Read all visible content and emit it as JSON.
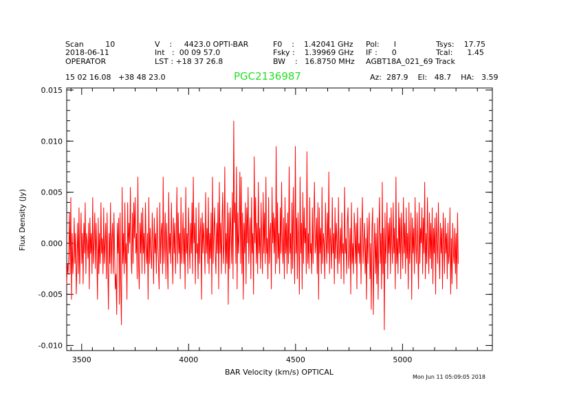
{
  "header": {
    "row1": [
      {
        "name": "header-scan",
        "text": "Scan         10"
      },
      {
        "name": "header-velocity",
        "text": "V    :     4423.0 OPTI-BAR"
      },
      {
        "name": "header-f0",
        "text": "F0    :    1.42041 GHz"
      },
      {
        "name": "header-pol",
        "text": "Pol:      I"
      },
      {
        "name": "header-tsys",
        "text": "Tsys:    17.75"
      }
    ],
    "row2": [
      {
        "name": "header-date",
        "text": "2018-06-11"
      },
      {
        "name": "header-int",
        "text": "Int   :  00 09 57.0"
      },
      {
        "name": "header-fsky",
        "text": "Fsky :    1.39969 GHz"
      },
      {
        "name": "header-if",
        "text": "IF :      0"
      },
      {
        "name": "header-tcal",
        "text": "Tcal:      1.45"
      }
    ],
    "row3": [
      {
        "name": "header-observer",
        "text": "OPERATOR"
      },
      {
        "name": "header-lst",
        "text": "LST : +18 37 26.8"
      },
      {
        "name": "header-bw",
        "text": "BW    :   16.8750 MHz"
      },
      {
        "name": "header-project",
        "text": "AGBT18A_021_69 Track"
      }
    ],
    "coords": "15 02 16.08   +38 48 23.0",
    "source": "PGC2136987",
    "azelha": "Az:  287.9    El:   48.7    HA:   3.59",
    "timestamp": "Mon Jun 11 05:09:05 2018"
  },
  "colors": {
    "series": "#ff0000",
    "source_title": "#22dd22",
    "axes": "#000000"
  },
  "chart_data": {
    "type": "line",
    "title": "PGC2136987",
    "xlabel": "BAR Velocity (km/s) OPTICAL",
    "ylabel": "Flux Density (Jy)",
    "xlim": [
      3430,
      5420
    ],
    "ylim": [
      -0.0105,
      0.0152
    ],
    "xticks": [
      3500,
      4000,
      4500,
      5000
    ],
    "xtick_labels": [
      "3500",
      "4000",
      "4500",
      "5000"
    ],
    "yticks": [
      0.015,
      0.01,
      0.005,
      0.0,
      -0.005,
      -0.01
    ],
    "ytick_labels": [
      "0.015",
      "0.010",
      "0.005",
      "0.000",
      "-0.005",
      "-0.010"
    ],
    "grid": false,
    "series": [
      {
        "x_start": 3430,
        "x_step": 3.2,
        "values": [
          -0.004,
          -0.002,
          -0.003,
          -0.001,
          0.003,
          -0.003,
          0.0045,
          -0.0055,
          0.001,
          -0.003,
          -0.001,
          0.0025,
          -0.002,
          0.001,
          -0.005,
          -0.002,
          0.002,
          -0.003,
          0.0035,
          -0.004,
          0.0,
          0.003,
          -0.002,
          0.001,
          -0.004,
          0.002,
          -0.001,
          0.004,
          -0.003,
          0.001,
          0.0,
          -0.0015,
          0.002,
          -0.0045,
          0.0025,
          -0.001,
          0.001,
          -0.003,
          0.0045,
          -0.002,
          0.0,
          0.003,
          -0.0025,
          0.002,
          -0.001,
          -0.0055,
          0.0025,
          -0.003,
          0.001,
          -0.002,
          0.004,
          -0.001,
          0.0005,
          -0.003,
          0.0035,
          -0.002,
          0.0,
          0.002,
          -0.0035,
          0.003,
          -0.002,
          -0.0065,
          0.001,
          -0.002,
          0.004,
          -0.003,
          0.0005,
          0.002,
          -0.003,
          0.003,
          -0.001,
          -0.0045,
          -0.003,
          -0.007,
          0.002,
          -0.001,
          0.0025,
          -0.006,
          0.003,
          -0.004,
          -0.008,
          0.0055,
          -0.002,
          0.001,
          -0.003,
          0.004,
          -0.002,
          0.0,
          -0.0055,
          0.004,
          -0.001,
          0.002,
          0.0,
          0.0055,
          -0.001,
          -0.003,
          0.003,
          -0.002,
          0.004,
          0.0005,
          0.0045,
          -0.001,
          0.001,
          -0.0035,
          0.0065,
          -0.002,
          -0.0045,
          0.002,
          -0.001,
          0.003,
          -0.003,
          0.0035,
          -0.001,
          0.001,
          -0.003,
          0.004,
          0.0,
          -0.002,
          0.001,
          -0.0055,
          0.0045,
          -0.002,
          0.0015,
          -0.001,
          -0.0025,
          0.003,
          0.0,
          -0.004,
          0.0025,
          -0.001,
          0.001,
          -0.003,
          0.0035,
          0.0,
          -0.002,
          -0.0045,
          0.004,
          -0.002,
          0.001,
          0.002,
          -0.003,
          0.0065,
          -0.002,
          0.0,
          0.003,
          -0.0035,
          0.002,
          -0.001,
          -0.0045,
          0.005,
          -0.001,
          0.001,
          -0.002,
          0.004,
          0.0,
          -0.004,
          0.0025,
          -0.001,
          0.002,
          -0.003,
          0.0005,
          0.0055,
          -0.002,
          0.003,
          -0.001,
          0.001,
          -0.0035,
          0.0045,
          -0.002,
          0.0,
          0.003,
          -0.002,
          0.0015,
          -0.0045,
          0.0055,
          -0.001,
          0.001,
          -0.003,
          0.0035,
          0.0,
          -0.0025,
          0.002,
          -0.001,
          0.004,
          -0.003,
          0.0065,
          0.0,
          0.002,
          -0.004,
          0.0035,
          -0.001,
          0.0,
          -0.0035,
          0.004,
          -0.002,
          0.001,
          0.0025,
          -0.0055,
          0.003,
          -0.001,
          0.002,
          0.0,
          -0.003,
          0.005,
          -0.001,
          0.0015,
          -0.002,
          0.0045,
          -0.003,
          0.001,
          -0.0015,
          0.003,
          -0.005,
          0.0065,
          -0.002,
          0.001,
          0.0035,
          -0.001,
          -0.003,
          0.002,
          -0.001,
          0.004,
          -0.0045,
          0.006,
          -0.001,
          0.002,
          -0.003,
          0.0025,
          0.005,
          -0.002,
          0.0,
          0.0075,
          -0.003,
          0.001,
          -0.002,
          0.004,
          -0.006,
          0.003,
          -0.0025,
          0.0035,
          0.001,
          -0.002,
          0.005,
          -0.0035,
          0.012,
          0.002,
          0.004,
          -0.002,
          0.0075,
          -0.0045,
          0.003,
          -0.001,
          0.001,
          0.007,
          -0.002,
          0.0065,
          -0.003,
          0.003,
          -0.0055,
          0.002,
          -0.001,
          0.004,
          -0.004,
          0.0035,
          0.0,
          0.0055,
          -0.002,
          0.001,
          0.0025,
          -0.0035,
          0.0045,
          -0.001,
          0.001,
          -0.005,
          0.0085,
          0.0,
          0.0045,
          -0.002,
          0.002,
          -0.003,
          0.006,
          -0.001,
          0.0015,
          -0.0025,
          0.004,
          0.0,
          -0.003,
          0.005,
          -0.001,
          0.003,
          -0.002,
          0.0065,
          -0.001,
          0.0005,
          -0.0035,
          0.0045,
          -0.002,
          0.001,
          0.002,
          -0.0045,
          0.0055,
          0.0,
          0.003,
          -0.001,
          0.0025,
          -0.003,
          0.0095,
          -0.002,
          0.004,
          -0.0015,
          0.001,
          -0.003,
          0.0035,
          -0.001,
          0.006,
          0.0,
          -0.002,
          0.0025,
          -0.0035,
          0.0045,
          -0.001,
          0.002,
          -0.003,
          0.003,
          -0.002,
          0.0075,
          -0.001,
          0.001,
          -0.003,
          0.004,
          -0.0025,
          0.0055,
          0.0,
          -0.004,
          0.0095,
          -0.001,
          0.0025,
          -0.0035,
          0.003,
          0.0,
          -0.005,
          0.0065,
          -0.001,
          0.002,
          -0.0045,
          0.005,
          -0.002,
          0.0035,
          0.0,
          0.0015,
          -0.003,
          0.009,
          -0.002,
          0.001,
          -0.0025,
          0.0045,
          -0.001,
          0.0,
          -0.003,
          0.0035,
          -0.002,
          0.002,
          0.006,
          -0.001,
          0.0,
          0.0025,
          -0.003,
          0.004,
          -0.0055,
          0.0035,
          -0.001,
          0.0015,
          -0.003,
          0.0055,
          -0.002,
          0.001,
          0.0,
          -0.0035,
          0.004,
          0.0005,
          -0.002,
          0.003,
          -0.001,
          0.007,
          -0.003,
          0.0015,
          0.0,
          -0.0025,
          0.0045,
          -0.001,
          0.001,
          -0.004,
          0.0035,
          -0.0015,
          0.002,
          0.0,
          -0.003,
          0.0045,
          -0.002,
          -0.0005,
          0.0015,
          -0.0035,
          0.003,
          -0.001,
          0.0,
          -0.004,
          0.0055,
          -0.001,
          0.0005,
          -0.003,
          0.002,
          0.0035,
          -0.0025,
          -0.001,
          0.0015,
          -0.005,
          0.004,
          -0.002,
          0.0,
          -0.003,
          0.003,
          0.001,
          -0.002,
          0.002,
          -0.0045,
          0.0035,
          -0.001,
          0.0,
          -0.002,
          0.0025,
          -0.004,
          0.001,
          0.0045,
          -0.002,
          0.0,
          0.002,
          -0.003,
          0.0005,
          -0.0055,
          0.0025,
          -0.002,
          0.001,
          0.003,
          -0.0035,
          0.0,
          -0.0065,
          0.0015,
          0.0035,
          -0.007,
          -0.001,
          0.002,
          -0.003,
          0.001,
          -0.004,
          0.0025,
          -0.0055,
          0.0005,
          0.0045,
          -0.002,
          0.001,
          -0.0045,
          0.006,
          -0.003,
          0.0015,
          -0.0085,
          0.003,
          -0.002,
          0.0,
          0.004,
          -0.0035,
          0.002,
          -0.001,
          0.0025,
          -0.003,
          0.0035,
          0.0,
          -0.002,
          0.004,
          -0.001,
          0.0015,
          -0.0045,
          0.0065,
          -0.002,
          0.0005,
          -0.003,
          0.004,
          -0.001,
          0.0025,
          -0.0035,
          0.003,
          0.0,
          -0.0025,
          0.0045,
          -0.001,
          0.002,
          -0.003,
          0.0035,
          -0.0015,
          0.001,
          -0.0045,
          0.004,
          -0.002,
          0.0,
          0.003,
          -0.0055,
          0.0025,
          -0.001,
          0.0015,
          -0.003,
          0.0045,
          0.0,
          -0.002,
          0.003,
          -0.001,
          -0.0045,
          0.004,
          -0.002,
          0.0015,
          0.0,
          0.0035,
          -0.003,
          0.0025,
          -0.001,
          0.006,
          -0.0035,
          0.001,
          -0.002,
          0.0045,
          0.0,
          -0.003,
          0.003,
          -0.0015,
          0.002,
          -0.0025,
          0.0035,
          -0.004,
          0.0015,
          -0.001,
          0.0025,
          -0.005,
          0.003,
          0.0,
          -0.002,
          0.004,
          -0.001,
          -0.0035,
          0.002,
          -0.001,
          0.0015,
          -0.0045,
          0.003,
          0.0,
          -0.003,
          0.0025,
          -0.001,
          0.001,
          -0.0035,
          0.002,
          -0.002,
          -0.001,
          0.0035,
          -0.005,
          0.0005,
          -0.004,
          0.002,
          -0.001,
          -0.002,
          0.0015,
          -0.003,
          0.001,
          -0.0045,
          0.003,
          -0.002
        ]
      }
    ]
  }
}
